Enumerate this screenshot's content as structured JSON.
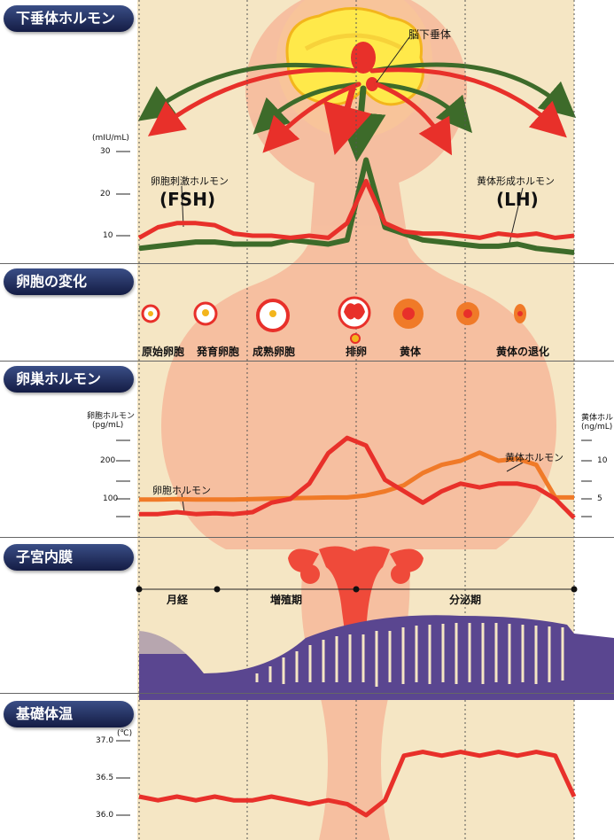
{
  "sections": {
    "pituitary": "下垂体ホルモン",
    "follicle": "卵胞の変化",
    "ovarian": "卵巣ホルモン",
    "endometrium": "子宮内膜",
    "bbt": "基礎体温"
  },
  "pituitary_panel": {
    "organ_label": "脳下垂体",
    "unit": "(mIU/mL)",
    "ticks": [
      "30",
      "20",
      "10"
    ],
    "fsh_label": "卵胞刺激ホルモン",
    "fsh_abbr": "(FSH)",
    "lh_label": "黄体形成ホルモン",
    "lh_abbr": "(LH)"
  },
  "follicle_panel": {
    "stages": [
      "原始卵胞",
      "発育卵胞",
      "成熟卵胞",
      "排卵",
      "黄体",
      "黄体の退化"
    ]
  },
  "ovarian_panel": {
    "left_title": "卵胞ホルモン",
    "left_unit": "(pg/mL)",
    "left_ticks": [
      "200",
      "100"
    ],
    "right_title": "黄体ホルモ",
    "right_unit": "(ng/mL)",
    "right_ticks": [
      "10",
      "5"
    ],
    "estrogen_label": "卵胞ホルモン",
    "progesterone_label": "黄体ホルモン"
  },
  "endometrium_panel": {
    "phases": [
      "月経",
      "増殖期",
      "分泌期"
    ]
  },
  "bbt_panel": {
    "unit": "(℃)",
    "ticks": [
      "37.0",
      "36.5",
      "36.0"
    ]
  },
  "colors": {
    "fsh": "#e8302a",
    "lh": "#3d6b2a",
    "estrogen": "#e8302a",
    "progesterone": "#f07a28",
    "endometrium": "#5a4690",
    "panel": "#f5e6c4",
    "silhouette": "#f6b194",
    "header": "#1f2b5a"
  },
  "chart_data": [
    {
      "type": "line",
      "series": [
        {
          "name": "卵胞刺激ホルモン (FSH)",
          "values": [
            9.5,
            12,
            13,
            13,
            12.5,
            10.5,
            10,
            10,
            9.5,
            10,
            9.5,
            13,
            23,
            13,
            11,
            10.5,
            10.5,
            10,
            9.5,
            10.5,
            10,
            10.5,
            9.5,
            10
          ]
        },
        {
          "name": "黄体形成ホルモン (LH)",
          "values": [
            7,
            7.5,
            8,
            8.5,
            8.5,
            8,
            8,
            8,
            9,
            8.5,
            8,
            9,
            28,
            12,
            10.5,
            9,
            8.5,
            8,
            7.5,
            7.5,
            8,
            7,
            6.5,
            6
          ]
        }
      ],
      "y_ticks": [
        10,
        20,
        30
      ]
    },
    {
      "type": "line",
      "series": [
        {
          "name": "卵胞ホルモン",
          "values": [
            60,
            60,
            65,
            60,
            62,
            60,
            65,
            90,
            100,
            140,
            220,
            260,
            240,
            150,
            120,
            90,
            120,
            140,
            130,
            140,
            140,
            130,
            100,
            50
          ]
        },
        {
          "name": "黄体ホルモン",
          "values": [
            0.5,
            0.5,
            0.6,
            0.5,
            0.5,
            0.5,
            0.6,
            0.7,
            0.8,
            0.9,
            1,
            1,
            1.5,
            2.5,
            4,
            7,
            9,
            10,
            12,
            10,
            10.5,
            9,
            1,
            1
          ]
        }
      ],
      "y_ticks": [
        100,
        200
      ],
      "y2_ticks": [
        5,
        10
      ]
    },
    {
      "type": "line",
      "series": [
        {
          "name": "基礎体温",
          "values": [
            36.25,
            36.2,
            36.25,
            36.2,
            36.25,
            36.2,
            36.2,
            36.25,
            36.2,
            36.15,
            36.2,
            36.15,
            36.0,
            36.2,
            36.8,
            36.85,
            36.8,
            36.85,
            36.8,
            36.85,
            36.8,
            36.85,
            36.8,
            36.25
          ]
        }
      ],
      "y_ticks": [
        36.0,
        36.5,
        37.0
      ]
    }
  ]
}
